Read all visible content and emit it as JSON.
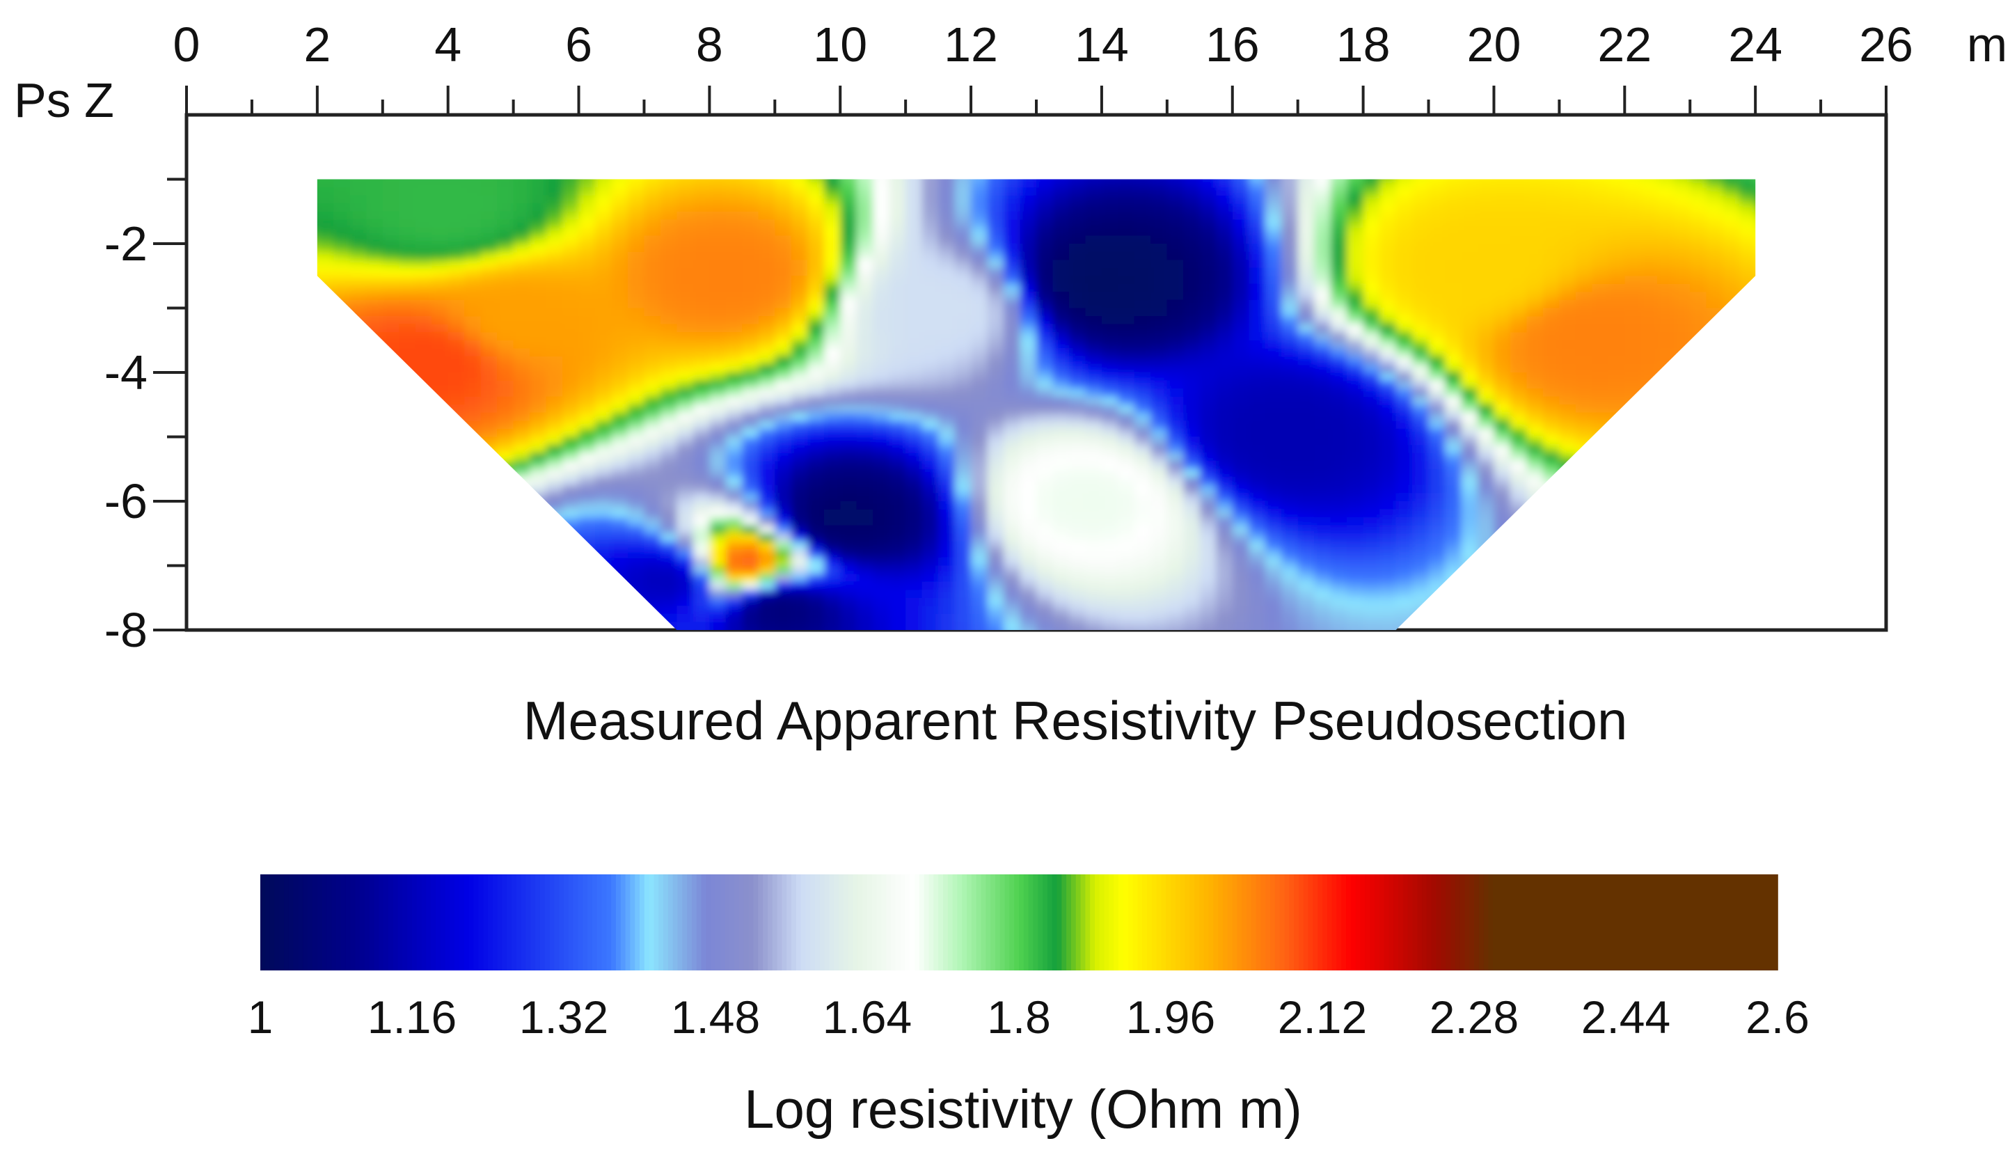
{
  "chart_data": {
    "type": "heatmap",
    "title": "Measured Apparent Resistivity Pseudosection",
    "x_axis": {
      "label": "m",
      "range": [
        0,
        26
      ],
      "major_ticks": [
        0,
        2,
        4,
        6,
        8,
        10,
        12,
        14,
        16,
        18,
        20,
        22,
        24,
        26
      ],
      "minor_step": 1,
      "position": "top"
    },
    "y_axis": {
      "label": "Ps Z",
      "range": [
        -8,
        0
      ],
      "tick_labels": [
        "-2",
        "-4",
        "-6",
        "-8"
      ],
      "tick_values": [
        -2,
        -4,
        -6,
        -8
      ],
      "minor_step": 1
    },
    "data_region": {
      "shape": "trapezoid",
      "top_depth": -1,
      "top_x_range": [
        2,
        24
      ],
      "shoulder_depth": -2.5,
      "bottom_depth": -8,
      "bottom_x_range": [
        7.5,
        18.5
      ]
    },
    "grid": false,
    "value_description": "Log apparent resistivity (estimated)",
    "anomalies": [
      {
        "name": "upper-left high resistivity zone",
        "x": 5.0,
        "depth": -3.2,
        "value": 2.02
      },
      {
        "name": "left flank high zone",
        "x": 3.8,
        "depth": -3.8,
        "value": 2.1
      },
      {
        "name": "small moderate spot",
        "x": 4.0,
        "depth": -1.5,
        "value": 1.82
      },
      {
        "name": "shallow high near x=8",
        "x": 8.3,
        "depth": -2.5,
        "value": 2.05
      },
      {
        "name": "upper-right high resistivity zone",
        "x": 21.5,
        "depth": -3.5,
        "value": 2.05
      },
      {
        "name": "upper-right moderate zone",
        "x": 19.8,
        "depth": -2.4,
        "value": 1.96
      },
      {
        "name": "central low resistivity band",
        "x": 14.0,
        "depth": -2.6,
        "value": 1.02
      },
      {
        "name": "right low resistivity band",
        "x": 16.8,
        "depth": -5.0,
        "value": 1.15
      },
      {
        "name": "lower-left low resistivity zone",
        "x": 10.0,
        "depth": -6.3,
        "value": 1.03
      },
      {
        "name": "bottom-left low zone",
        "x": 7.5,
        "depth": -7.2,
        "value": 1.15
      },
      {
        "name": "isolated high spot",
        "x": 8.5,
        "depth": -7.0,
        "value": 2.12
      },
      {
        "name": "small low spot",
        "x": 9.0,
        "depth": -7.6,
        "value": 1.05
      },
      {
        "name": "central moderate zone",
        "x": 13.8,
        "depth": -6.0,
        "value": 1.7
      },
      {
        "name": "diagonal moderate band",
        "x": 11.6,
        "depth": -3.0,
        "value": 1.58
      }
    ],
    "background_value": 1.45,
    "colorbar": {
      "title": "Log resistivity (Ohm m)",
      "min": 1,
      "max": 2.6,
      "ticks": [
        "1",
        "1.16",
        "1.32",
        "1.48",
        "1.64",
        "1.8",
        "1.96",
        "2.12",
        "2.28",
        "2.44",
        "2.6"
      ],
      "tick_values": [
        1,
        1.16,
        1.32,
        1.48,
        1.64,
        1.8,
        1.96,
        2.12,
        2.28,
        2.44,
        2.6
      ],
      "stops": [
        {
          "value": 1.0,
          "color": "#000a5a"
        },
        {
          "value": 1.1,
          "color": "#00008c"
        },
        {
          "value": 1.22,
          "color": "#0000e6"
        },
        {
          "value": 1.37,
          "color": "#3c78ff"
        },
        {
          "value": 1.41,
          "color": "#8ce6ff"
        },
        {
          "value": 1.47,
          "color": "#7b86d6"
        },
        {
          "value": 1.52,
          "color": "#8c91cc"
        },
        {
          "value": 1.57,
          "color": "#cddcf5"
        },
        {
          "value": 1.63,
          "color": "#e6f5e6"
        },
        {
          "value": 1.69,
          "color": "#ffffff"
        },
        {
          "value": 1.74,
          "color": "#aff5b4"
        },
        {
          "value": 1.8,
          "color": "#50d250"
        },
        {
          "value": 1.84,
          "color": "#14a03c"
        },
        {
          "value": 1.88,
          "color": "#d7f000"
        },
        {
          "value": 1.91,
          "color": "#ffff00"
        },
        {
          "value": 2.0,
          "color": "#ffb400"
        },
        {
          "value": 2.08,
          "color": "#ff6414"
        },
        {
          "value": 2.15,
          "color": "#ff0000"
        },
        {
          "value": 2.24,
          "color": "#a00a00"
        },
        {
          "value": 2.3,
          "color": "#643200"
        },
        {
          "value": 2.6,
          "color": "#643200"
        }
      ]
    }
  }
}
